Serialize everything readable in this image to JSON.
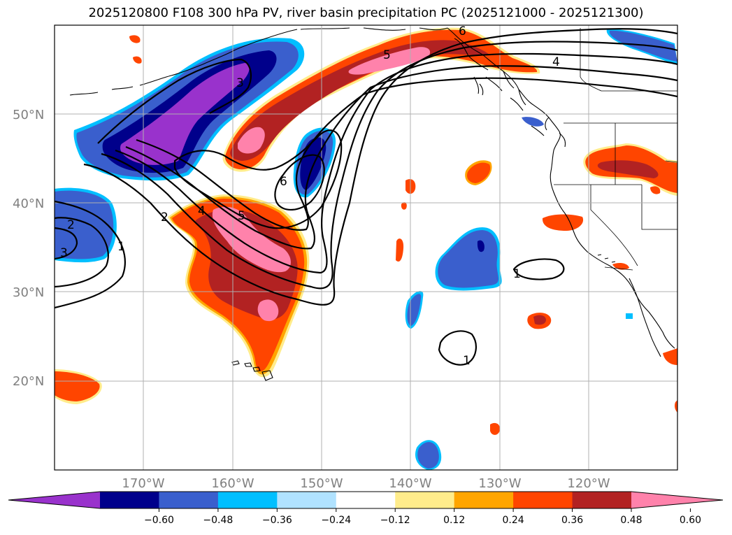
{
  "title": "2025120800 F108 300 hPa PV, river basin precipitation PC (2025121000 - 2025121300)",
  "map": {
    "lon_range": [
      -180,
      -110
    ],
    "lat_range": [
      10,
      60
    ],
    "lat_labels": [
      "20°N",
      "30°N",
      "40°N",
      "50°N"
    ],
    "lon_labels": [
      "170°W",
      "160°W",
      "150°W",
      "140°W",
      "130°W",
      "120°W"
    ]
  },
  "contour_labels": [
    "2",
    "3",
    "1",
    "2",
    "4",
    "5",
    "3",
    "6",
    "5",
    "6",
    "4",
    "1",
    "1"
  ],
  "colorbar": {
    "colors": [
      "#9932cc",
      "#00008b",
      "#3a5fcd",
      "#00bfff",
      "#b0e2ff",
      "#ffffff",
      "#ffec8b",
      "#ffa500",
      "#ff4500",
      "#b22222",
      "#ff82ab"
    ],
    "tick_labels": [
      "−0.60",
      "−0.48",
      "−0.36",
      "−0.24",
      "−0.12",
      "0.12",
      "0.24",
      "0.36",
      "0.48",
      "0.60"
    ]
  }
}
